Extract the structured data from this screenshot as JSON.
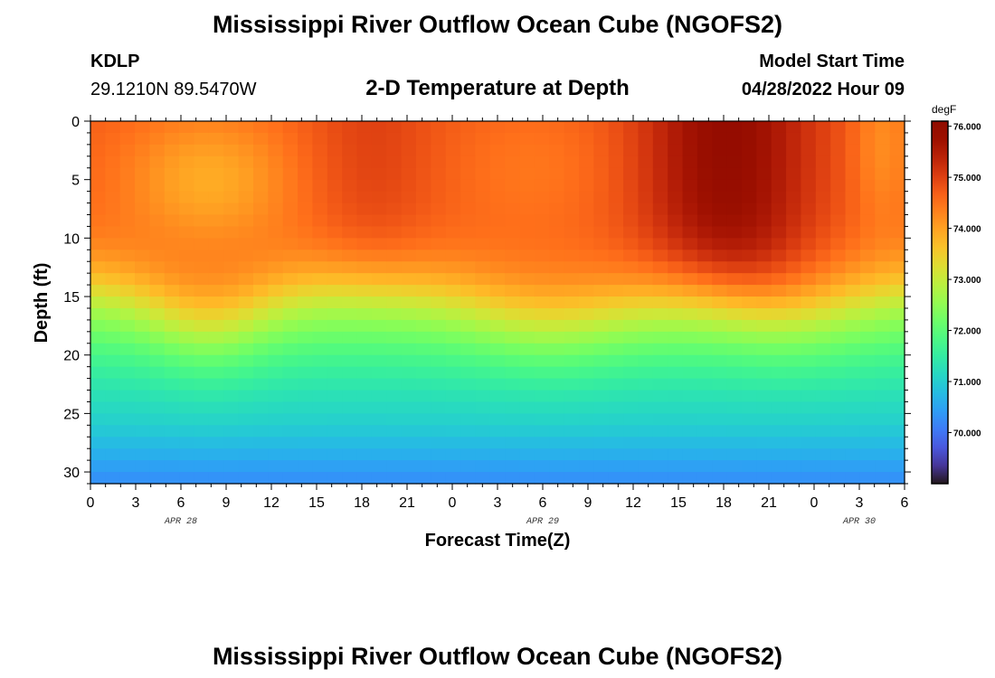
{
  "page": {
    "title": "Mississippi River Outflow Ocean Cube (NGOFS2)",
    "title_repeat": "Mississippi River Outflow Ocean Cube (NGOFS2)"
  },
  "header": {
    "station_id": "KDLP",
    "station_coords": "29.1210N  89.5470W",
    "model_start_label": "Model Start Time",
    "model_start_value": "04/28/2022 Hour 09"
  },
  "chart_data": {
    "type": "heatmap",
    "title": "2-D Temperature at Depth",
    "xlabel": "Forecast Time(Z)",
    "ylabel": "Depth (ft)",
    "x_ticks": [
      "0",
      "3",
      "6",
      "9",
      "12",
      "15",
      "18",
      "21",
      "0",
      "3",
      "6",
      "9",
      "12",
      "15",
      "18",
      "21",
      "0",
      "3",
      "6"
    ],
    "x_range_hours": [
      0,
      54
    ],
    "date_labels": [
      {
        "text": "APR 28",
        "at_hour": 6
      },
      {
        "text": "APR 29",
        "at_hour": 30
      },
      {
        "text": "APR 30",
        "at_hour": 51
      }
    ],
    "y_ticks": [
      0,
      5,
      10,
      15,
      20,
      25,
      30
    ],
    "ylim": [
      0,
      31
    ],
    "y_inverted": true,
    "colorbar": {
      "unit": "degF",
      "range": [
        69.0,
        76.1
      ],
      "labels": [
        "76.000",
        "75.000",
        "74.000",
        "73.000",
        "72.000",
        "71.000",
        "70.000"
      ],
      "label_values": [
        76,
        75,
        74,
        73,
        72,
        71,
        70
      ],
      "colormap": "turbo"
    },
    "grid": {
      "n_time": 55,
      "n_depth": 32,
      "time_step_hours": 1,
      "depth_step_ft": 1
    }
  }
}
